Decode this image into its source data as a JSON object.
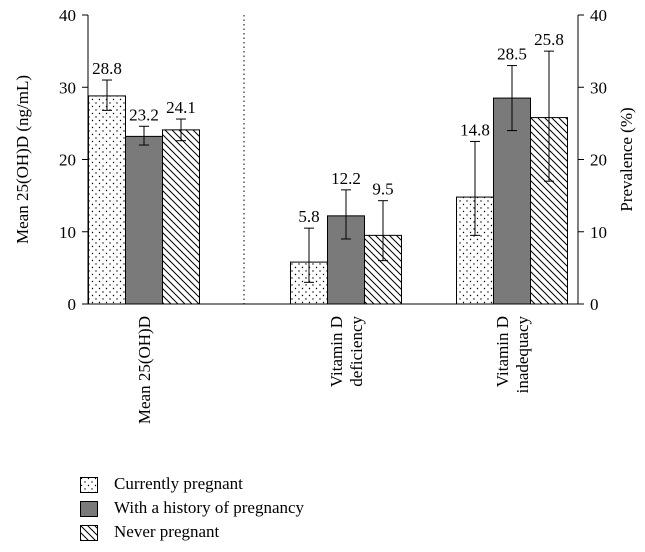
{
  "chart_data": {
    "type": "bar",
    "categories": [
      "Mean 25(OH)D",
      "Vitamin D deficiency",
      "Vitamin D inadequacy"
    ],
    "category_label_lines": [
      [
        "Mean 25(OH)D"
      ],
      [
        "Vitamin D",
        "deficiency"
      ],
      [
        "Vitamin D",
        "inadequacy"
      ]
    ],
    "series": [
      {
        "name": "Currently pregnant",
        "pattern": "dots",
        "color": "#ffffff",
        "values": [
          28.8,
          5.8,
          14.8
        ],
        "labels": [
          "28.8",
          "5.8",
          "14.8"
        ],
        "error_low": [
          26.8,
          3.0,
          9.5
        ],
        "error_high": [
          31.0,
          10.5,
          22.5
        ]
      },
      {
        "name": "With a history of pregnancy",
        "pattern": "solid",
        "color": "#7a7a7a",
        "values": [
          23.2,
          12.2,
          28.5
        ],
        "labels": [
          "23.2",
          "12.2",
          "28.5"
        ],
        "error_low": [
          22.0,
          9.0,
          24.0
        ],
        "error_high": [
          24.6,
          15.8,
          33.0
        ]
      },
      {
        "name": "Never pregnant",
        "pattern": "hatch",
        "color": "#ffffff",
        "values": [
          24.1,
          9.5,
          25.8
        ],
        "labels": [
          "24.1",
          "9.5",
          "25.8"
        ],
        "error_low": [
          22.6,
          6.0,
          17.0
        ],
        "error_high": [
          25.6,
          14.3,
          35.0
        ]
      }
    ],
    "ylabel_left": "Mean 25(OH)D (ng/mL)",
    "ylabel_right": "Prevalence (%)",
    "ylim": [
      0,
      40
    ],
    "yticks": [
      "0",
      "10",
      "20",
      "30",
      "40"
    ],
    "grid": false,
    "legend_position": "bottom-left"
  }
}
